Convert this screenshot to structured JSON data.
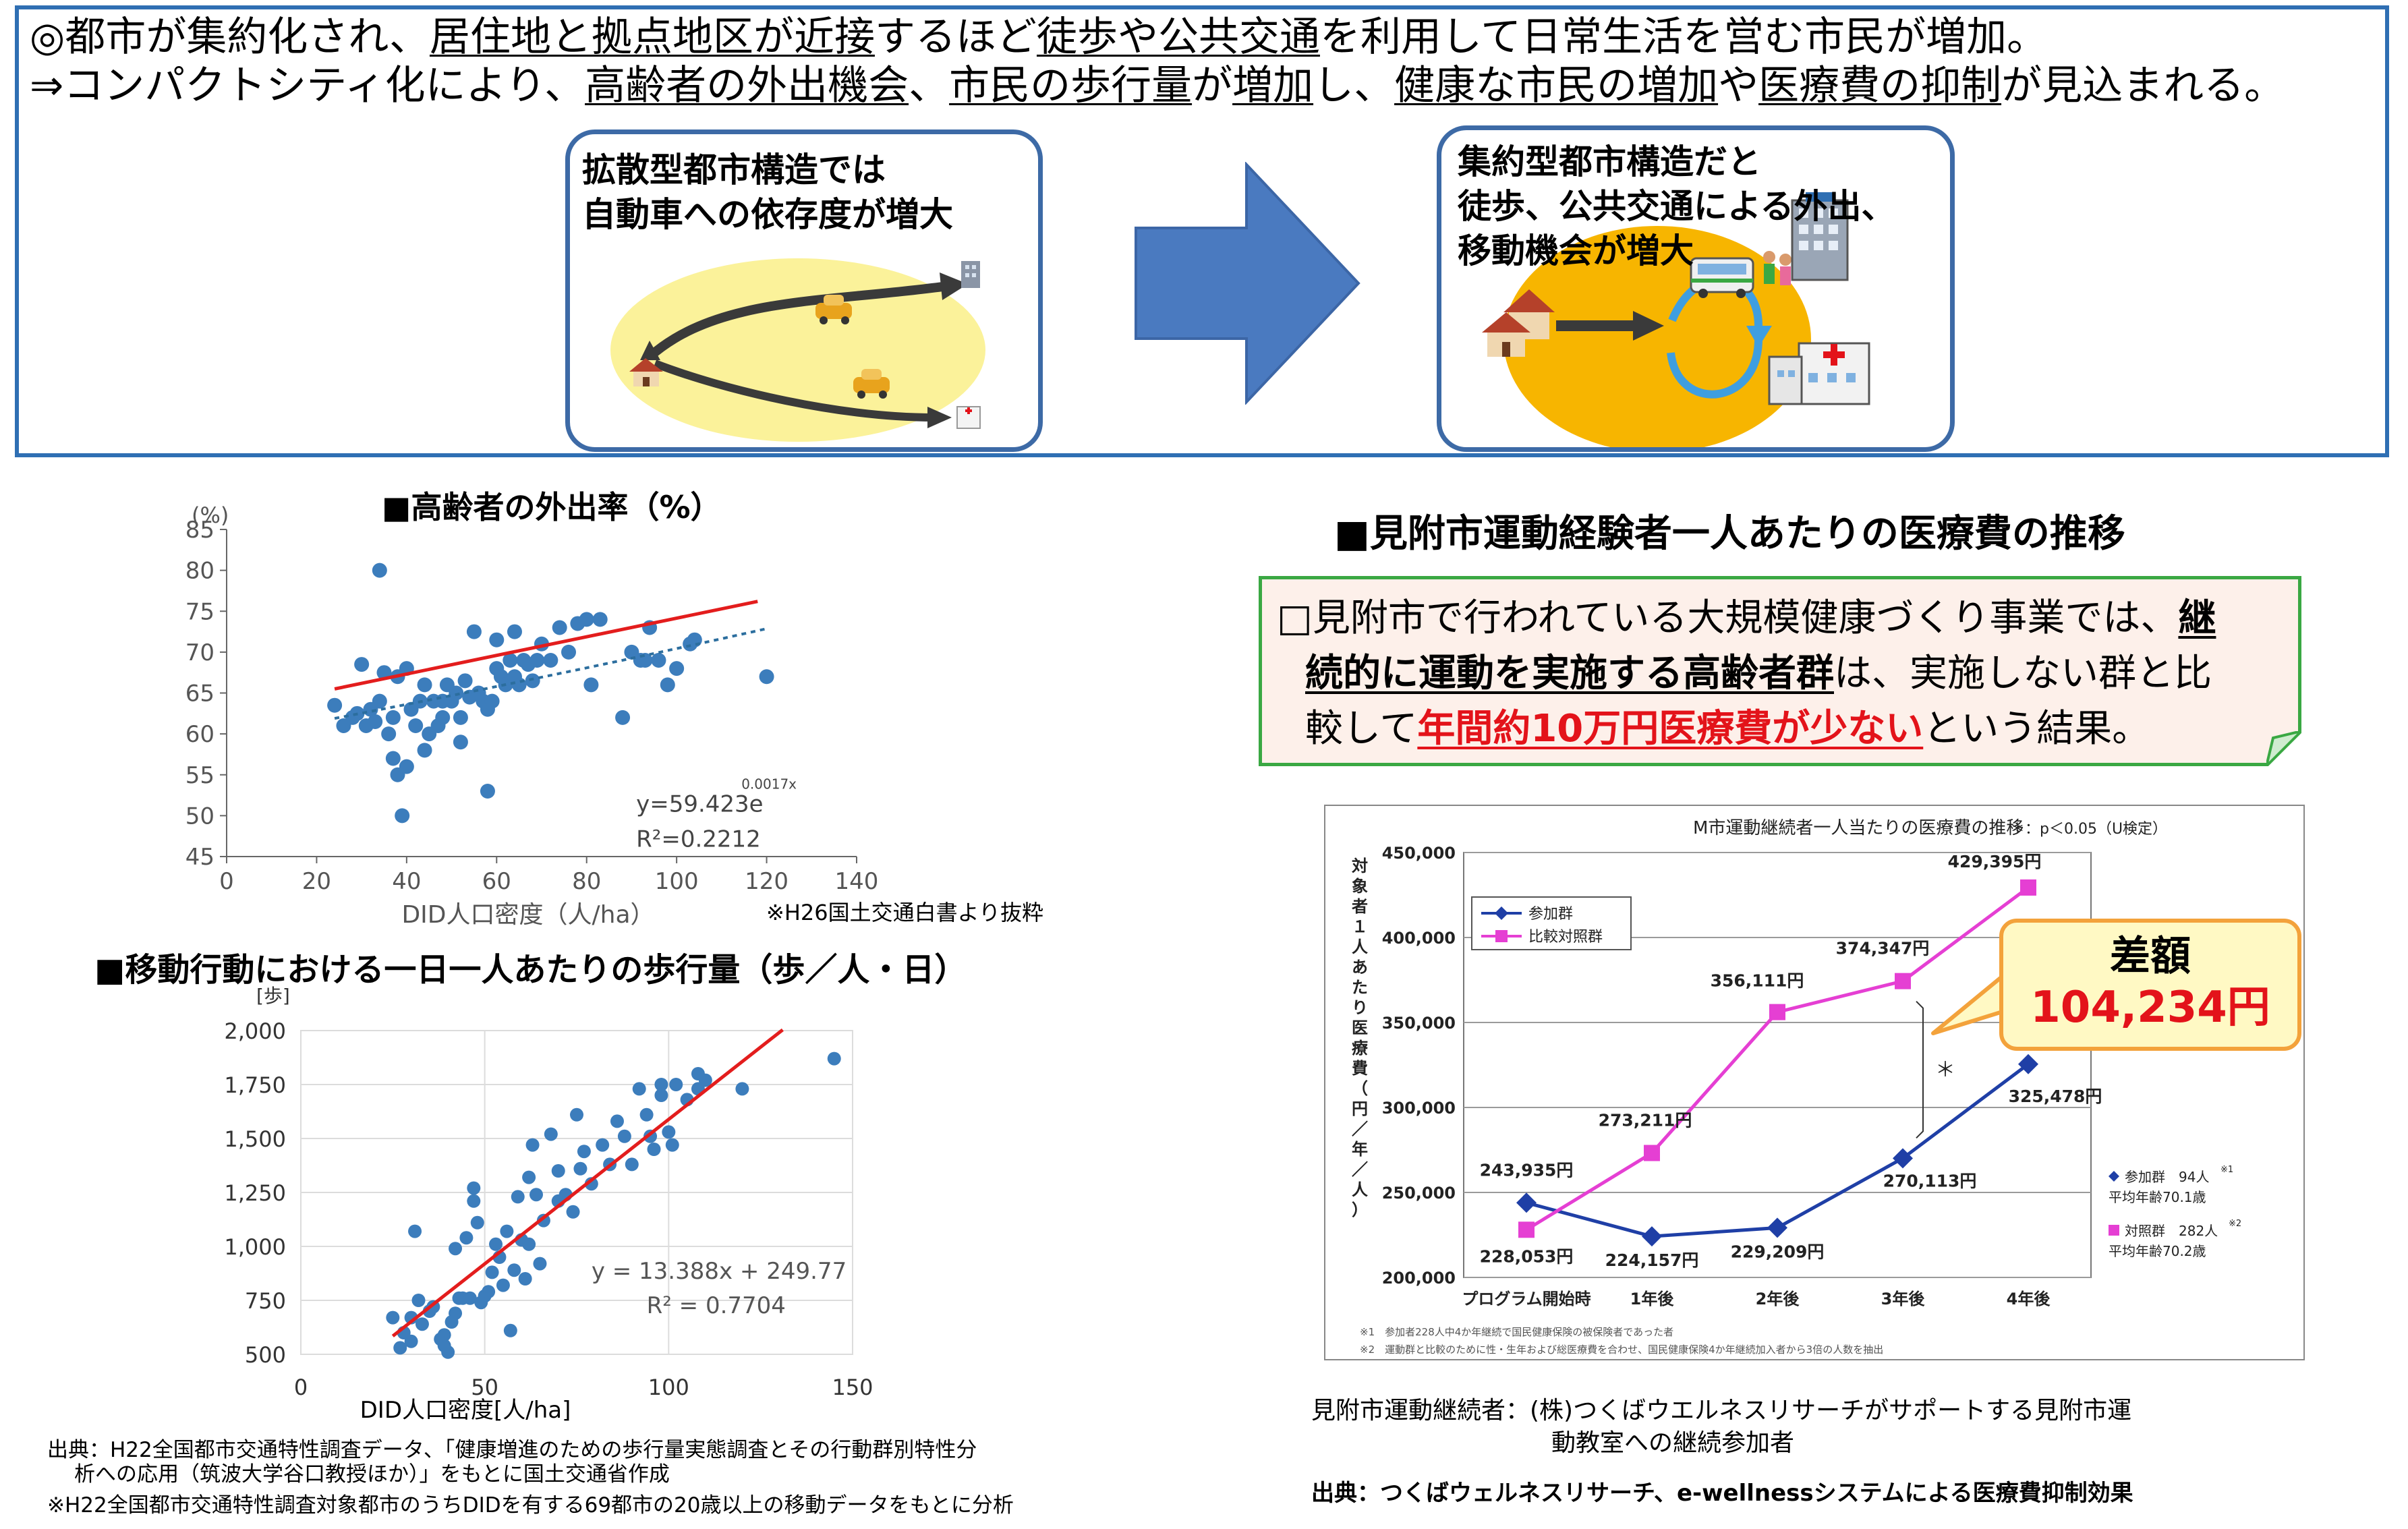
{
  "headline": {
    "line1": [
      {
        "t": "◎都市が集約化され、"
      },
      {
        "t": "居住地と拠点地区が近接",
        "u": true
      },
      {
        "t": "するほど"
      },
      {
        "t": "徒歩や公共交通",
        "u": true
      },
      {
        "t": "を利用して日常生活を営む市民が増加。"
      }
    ],
    "line2": [
      {
        "t": "⇒コンパクトシティ化により、"
      },
      {
        "t": "高齢者の外出機会",
        "u": true
      },
      {
        "t": "、"
      },
      {
        "t": "市民の歩行量",
        "u": true
      },
      {
        "t": "が"
      },
      {
        "t": "増加",
        "u": true
      },
      {
        "t": "し、"
      },
      {
        "t": "健康な市民の増加",
        "u": true
      },
      {
        "t": "や"
      },
      {
        "t": "医療費の抑制",
        "u": true
      },
      {
        "t": "が見込まれる。"
      }
    ]
  },
  "dispersed_box": {
    "line1": "拡散型都市構造では",
    "line2": "自動車への依存度が増大"
  },
  "compact_box": {
    "line1": "集約型都市構造だと",
    "line2": "徒歩、公共交通による外出、",
    "line3": "移動機会が増大"
  },
  "outing_title": "■高齢者の外出率（%）",
  "outing_source": "※H26国土交通白書より抜粋",
  "steps_title": "■移動行動における一日一人あたりの歩行量（歩／人・日）",
  "steps_source": {
    "line1": "出典：H22全国都市交通特性調査データ、「健康増進のための歩行量実態調査とその行動群別特性分",
    "line2": "析への応用（筑波大学谷口教授ほか）」をもとに国土交通省作成",
    "line3": "※H22全国都市交通特性調査対象都市のうちDIDを有する69都市の20歳以上の移動データをもとに分析"
  },
  "medical_title": "■見附市運動経験者一人あたりの医療費の推移",
  "callout": {
    "line1_plain": "□見附市で行われている大規模健康づくり事業では、",
    "line1_bold": "継",
    "line2_bold": "続的に運動を実施する高齢者群",
    "line2_plain": "は、実施しない群と比",
    "line3_plain1": "較して",
    "line3_red": "年間約10万円医療費が少ない",
    "line3_plain2": "という結果。"
  },
  "difference": {
    "label": "差額",
    "value": "104,234円"
  },
  "medical_caption": {
    "line1": "見附市運動継続者：(株)つくばウエルネスリサーチがサポートする見附市運",
    "line2": "動教室への継続参加者"
  },
  "medical_source": "出典：つくばウェルネスリサーチ、e-wellnessシステムによる医療費抑制効果",
  "colors": {
    "panel_border": "#2f6fb3",
    "scatter_point": "#3c7dbc",
    "trend_red": "#e31d1d",
    "participants": "#1f3fa6",
    "control": "#e53fd3",
    "callout_border": "#3aa843",
    "highlight_red": "#e3131a"
  },
  "chart_data": [
    {
      "type": "scatter",
      "title": "",
      "xlabel": "DID人口密度（人/ha）",
      "ylabel": "(%)",
      "xlim": [
        0,
        140
      ],
      "ylim": [
        45,
        85
      ],
      "xticks": [
        0,
        20,
        40,
        60,
        80,
        100,
        120,
        140
      ],
      "yticks": [
        45,
        50,
        55,
        60,
        65,
        70,
        75,
        80,
        85
      ],
      "annotation": [
        "y=59.423e",
        "0.0017x",
        "R²=0.2212"
      ],
      "trend_exponential": {
        "a": 59.423,
        "b": 0.0017
      },
      "trend_red_line": {
        "x": [
          24,
          118
        ],
        "y": [
          65.5,
          76.2
        ]
      },
      "points": [
        [
          24,
          63.5
        ],
        [
          26,
          61
        ],
        [
          28,
          62
        ],
        [
          29,
          62.5
        ],
        [
          30,
          68.5
        ],
        [
          31,
          61
        ],
        [
          32,
          63
        ],
        [
          33,
          61.5
        ],
        [
          34,
          80
        ],
        [
          34,
          64
        ],
        [
          35,
          67.5
        ],
        [
          36,
          60
        ],
        [
          37,
          57
        ],
        [
          37,
          62
        ],
        [
          38,
          55
        ],
        [
          38,
          67
        ],
        [
          39,
          50
        ],
        [
          40,
          56
        ],
        [
          40,
          68
        ],
        [
          41,
          63
        ],
        [
          42,
          61
        ],
        [
          43,
          64
        ],
        [
          44,
          66
        ],
        [
          44,
          58
        ],
        [
          45,
          60
        ],
        [
          46,
          64
        ],
        [
          47,
          61
        ],
        [
          48,
          64
        ],
        [
          48,
          62
        ],
        [
          49,
          66
        ],
        [
          50,
          64
        ],
        [
          51,
          65
        ],
        [
          52,
          59
        ],
        [
          52,
          62
        ],
        [
          53,
          66.5
        ],
        [
          54,
          64.5
        ],
        [
          55,
          72.5
        ],
        [
          56,
          65
        ],
        [
          57,
          64
        ],
        [
          58,
          53
        ],
        [
          58,
          63
        ],
        [
          59,
          64
        ],
        [
          60,
          68
        ],
        [
          60,
          71.5
        ],
        [
          61,
          67
        ],
        [
          62,
          66
        ],
        [
          63,
          69
        ],
        [
          64,
          72.5
        ],
        [
          64,
          67
        ],
        [
          65,
          66
        ],
        [
          66,
          69
        ],
        [
          67,
          68.5
        ],
        [
          68,
          66.5
        ],
        [
          69,
          69
        ],
        [
          70,
          71
        ],
        [
          72,
          69
        ],
        [
          74,
          73
        ],
        [
          76,
          70
        ],
        [
          78,
          73.5
        ],
        [
          80,
          74
        ],
        [
          81,
          66
        ],
        [
          83,
          74
        ],
        [
          88,
          62
        ],
        [
          90,
          70
        ],
        [
          92,
          69
        ],
        [
          94,
          73
        ],
        [
          93,
          69
        ],
        [
          96,
          69
        ],
        [
          98,
          66
        ],
        [
          100,
          68
        ],
        [
          104,
          71.5
        ],
        [
          103,
          71
        ],
        [
          120,
          67
        ]
      ]
    },
    {
      "type": "scatter",
      "title": "",
      "xlabel": "DID人口密度[人/ha]",
      "ylabel": "[歩]",
      "xlim": [
        0,
        150
      ],
      "ylim": [
        500,
        2000
      ],
      "xticks": [
        0,
        50,
        100,
        150
      ],
      "yticks": [
        500,
        750,
        1000,
        1250,
        1500,
        1750,
        2000
      ],
      "yticklabels": [
        "500",
        "750",
        "1,000",
        "1,250",
        "1,500",
        "1,750",
        "2,000"
      ],
      "annotation": [
        "y = 13.388x + 249.77",
        "R² = 0.7704"
      ],
      "trend_linear": {
        "slope": 13.388,
        "intercept": 249.77
      },
      "points": [
        [
          25,
          670
        ],
        [
          27,
          530
        ],
        [
          28,
          600
        ],
        [
          30,
          560
        ],
        [
          30,
          670
        ],
        [
          31,
          1070
        ],
        [
          32,
          750
        ],
        [
          33,
          640
        ],
        [
          35,
          700
        ],
        [
          36,
          720
        ],
        [
          38,
          570
        ],
        [
          39,
          540
        ],
        [
          39,
          590
        ],
        [
          40,
          510
        ],
        [
          41,
          650
        ],
        [
          42,
          690
        ],
        [
          42,
          990
        ],
        [
          43,
          760
        ],
        [
          44,
          760
        ],
        [
          45,
          1040
        ],
        [
          46,
          760
        ],
        [
          47,
          1210
        ],
        [
          47,
          1270
        ],
        [
          48,
          1110
        ],
        [
          49,
          740
        ],
        [
          50,
          770
        ],
        [
          51,
          790
        ],
        [
          52,
          880
        ],
        [
          53,
          1010
        ],
        [
          54,
          950
        ],
        [
          55,
          820
        ],
        [
          56,
          1070
        ],
        [
          57,
          610
        ],
        [
          58,
          890
        ],
        [
          59,
          1230
        ],
        [
          60,
          1030
        ],
        [
          61,
          850
        ],
        [
          62,
          1010
        ],
        [
          62,
          1320
        ],
        [
          63,
          1470
        ],
        [
          64,
          1240
        ],
        [
          65,
          920
        ],
        [
          66,
          1120
        ],
        [
          68,
          1520
        ],
        [
          70,
          1210
        ],
        [
          70,
          1350
        ],
        [
          72,
          1240
        ],
        [
          74,
          1160
        ],
        [
          75,
          1610
        ],
        [
          76,
          1360
        ],
        [
          77,
          1440
        ],
        [
          79,
          1290
        ],
        [
          82,
          1470
        ],
        [
          84,
          1380
        ],
        [
          86,
          1580
        ],
        [
          88,
          1510
        ],
        [
          90,
          1380
        ],
        [
          92,
          1730
        ],
        [
          94,
          1610
        ],
        [
          95,
          1510
        ],
        [
          96,
          1450
        ],
        [
          98,
          1750
        ],
        [
          98,
          1700
        ],
        [
          100,
          1530
        ],
        [
          101,
          1470
        ],
        [
          102,
          1750
        ],
        [
          105,
          1680
        ],
        [
          108,
          1730
        ],
        [
          108,
          1800
        ],
        [
          110,
          1770
        ],
        [
          120,
          1730
        ],
        [
          145,
          1870
        ]
      ]
    },
    {
      "type": "line",
      "title": "M市運動継続者一人当たりの医療費の推移",
      "subtitle": "＊：p＜0.05（U検定）",
      "xlabel": "",
      "ylabel": "対象者１人あたり医療費（円／年／人）",
      "categories": [
        "プログラム開始時",
        "1年後",
        "2年後",
        "3年後",
        "4年後"
      ],
      "ylim": [
        200000,
        450000
      ],
      "yticks": [
        200000,
        250000,
        300000,
        350000,
        400000,
        450000
      ],
      "yticklabels": [
        "200,000",
        "250,000",
        "300,000",
        "350,000",
        "400,000",
        "450,000"
      ],
      "series": [
        {
          "name": "参加群",
          "values": [
            243935,
            224157,
            229209,
            270113,
            325478
          ],
          "labels": [
            "243,935円",
            "224,157円",
            "229,209円",
            "270,113円",
            "325,478円"
          ]
        },
        {
          "name": "比較対照群",
          "values": [
            228053,
            273211,
            356111,
            374347,
            429395
          ],
          "labels": [
            "228,053円",
            "273,211円",
            "356,111円",
            "374,347円",
            "429,395円"
          ]
        }
      ],
      "significance_mark": "＊",
      "side_legend": {
        "participant_line1": "参加群　94人",
        "participant_sup": "※1",
        "participant_line2": "平均年齢70.1歳",
        "control_line1": "対照群　282人",
        "control_sup": "※2",
        "control_line2": "平均年齢70.2歳"
      },
      "footnotes": [
        "※1　参加者228人中4か年継続で国民健康保険の被保険者であった者",
        "※2　運動群と比較のために性・生年および総医療費を合わせ、国民健康保険4か年継続加入者から3倍の人数を抽出"
      ]
    }
  ]
}
